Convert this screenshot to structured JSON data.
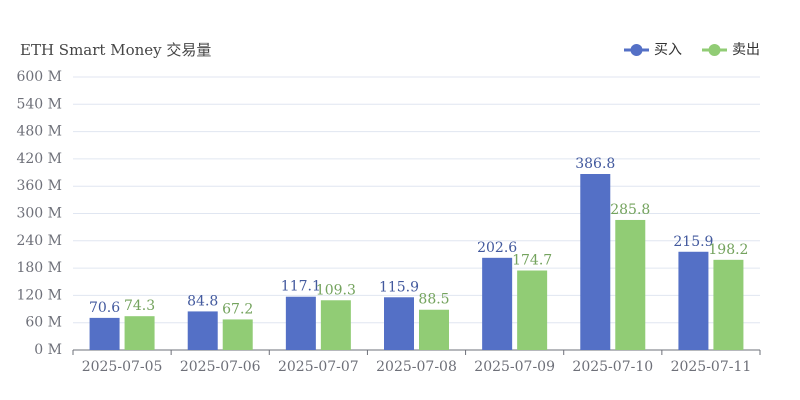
{
  "chart_data": {
    "type": "bar",
    "title": "ETH Smart Money 交易量",
    "categories": [
      "2025-07-05",
      "2025-07-06",
      "2025-07-07",
      "2025-07-08",
      "2025-07-09",
      "2025-07-10",
      "2025-07-11"
    ],
    "series": [
      {
        "name": "买入",
        "color": "#5470c6",
        "values": [
          70.6,
          84.8,
          117.1,
          115.9,
          202.6,
          386.8,
          215.9
        ]
      },
      {
        "name": "卖出",
        "color": "#91cc75",
        "values": [
          74.3,
          67.2,
          109.3,
          88.5,
          174.7,
          285.8,
          198.2
        ]
      }
    ],
    "ylim": [
      0,
      600
    ],
    "yticks": [
      {
        "value": 0,
        "label": "0 M"
      },
      {
        "value": 60,
        "label": "60 M"
      },
      {
        "value": 120,
        "label": "120 M"
      },
      {
        "value": 180,
        "label": "180 M"
      },
      {
        "value": 240,
        "label": "240 M"
      },
      {
        "value": 300,
        "label": "300 M"
      },
      {
        "value": 360,
        "label": "360 M"
      },
      {
        "value": 420,
        "label": "420 M"
      },
      {
        "value": 480,
        "label": "480 M"
      },
      {
        "value": 540,
        "label": "540 M"
      },
      {
        "value": 600,
        "label": "600 M"
      }
    ],
    "grid": true,
    "legend": "top-right"
  }
}
